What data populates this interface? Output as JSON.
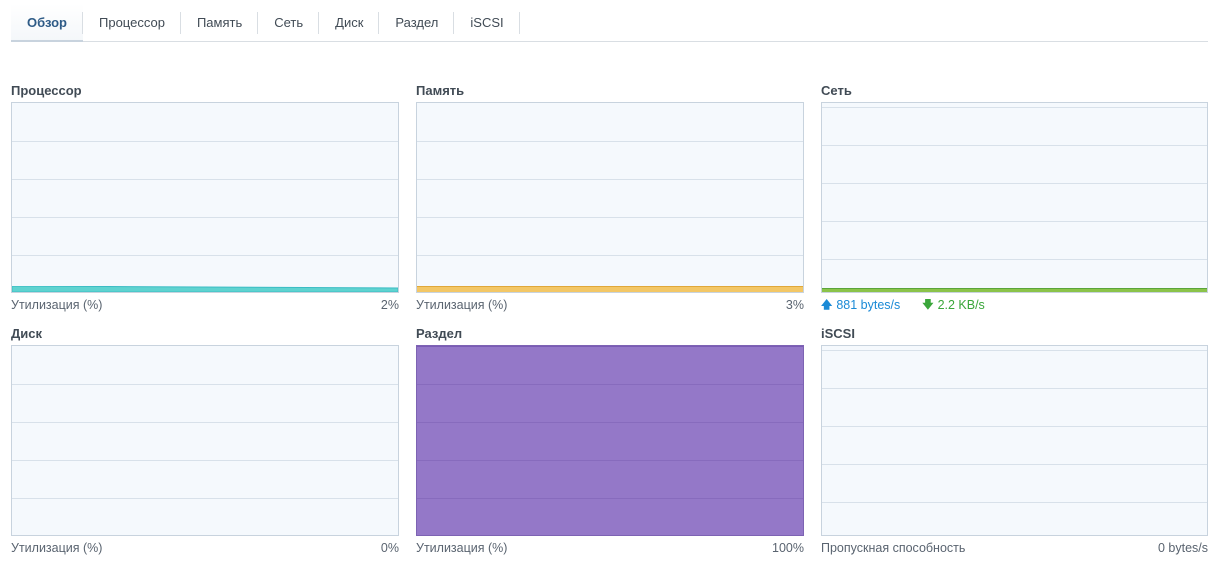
{
  "tabs": [
    {
      "label": "Обзор",
      "active": true
    },
    {
      "label": "Процессор"
    },
    {
      "label": "Память"
    },
    {
      "label": "Сеть"
    },
    {
      "label": "Диск"
    },
    {
      "label": "Раздел"
    },
    {
      "label": "iSCSI"
    }
  ],
  "panels": {
    "cpu": {
      "title": "Процессор",
      "metric": "Утилизация (%)",
      "value": "2%",
      "percent": 2,
      "color": "#5fd3d0"
    },
    "memory": {
      "title": "Память",
      "metric": "Утилизация (%)",
      "value": "3%",
      "percent": 3,
      "color": "#f3c766"
    },
    "network": {
      "title": "Сеть",
      "upload": "881 bytes/s",
      "download": "2.2 KB/s",
      "color": "#8bc34a"
    },
    "disk": {
      "title": "Диск",
      "metric": "Утилизация (%)",
      "value": "0%",
      "percent": 0
    },
    "volume": {
      "title": "Раздел",
      "metric": "Утилизация (%)",
      "value": "100%",
      "percent": 100,
      "color": "#9478c8"
    },
    "iscsi": {
      "title": "iSCSI",
      "metric": "Пропускная способность",
      "value": "0 bytes/s"
    }
  }
}
